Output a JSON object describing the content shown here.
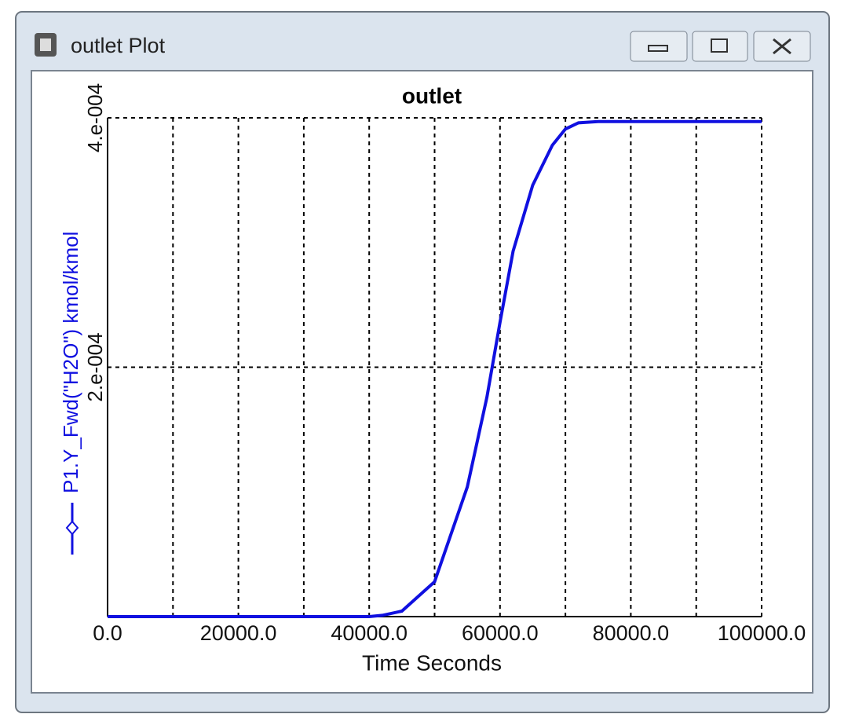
{
  "window": {
    "title": "outlet Plot"
  },
  "chart_data": {
    "type": "line",
    "title": "outlet",
    "x_label": "Time Seconds",
    "x": [
      0,
      30000,
      40000,
      42000,
      45000,
      50000,
      55000,
      58000,
      60000,
      62000,
      65000,
      68000,
      70000,
      72000,
      75000,
      100000
    ],
    "series": [
      {
        "name": "P1.Y_Fwd(\"H2O\") kmol/kmol",
        "color": "#1010e0",
        "values": [
          0,
          0,
          0,
          1e-06,
          4.4e-06,
          2.8e-05,
          0.000104,
          0.000176,
          0.000236,
          0.000293,
          0.000346,
          0.000378,
          0.000391,
          0.000396,
          0.000397,
          0.000397
        ]
      }
    ],
    "xlim": [
      0,
      100000
    ],
    "xticks": [
      {
        "value": 0,
        "label": "0.0"
      },
      {
        "value": 20000,
        "label": "20000.0"
      },
      {
        "value": 40000,
        "label": "40000.0"
      },
      {
        "value": 60000,
        "label": "60000.0"
      },
      {
        "value": 80000,
        "label": "80000.0"
      },
      {
        "value": 100000,
        "label": "100000.0"
      }
    ],
    "xgrid": [
      10000,
      30000,
      50000,
      70000,
      90000
    ],
    "ylim": [
      0,
      0.0004
    ],
    "yticks": [
      {
        "value": 0.0002,
        "label": "2.e-004"
      },
      {
        "value": 0.0004,
        "label": "4.e-004"
      }
    ],
    "grid": true
  }
}
